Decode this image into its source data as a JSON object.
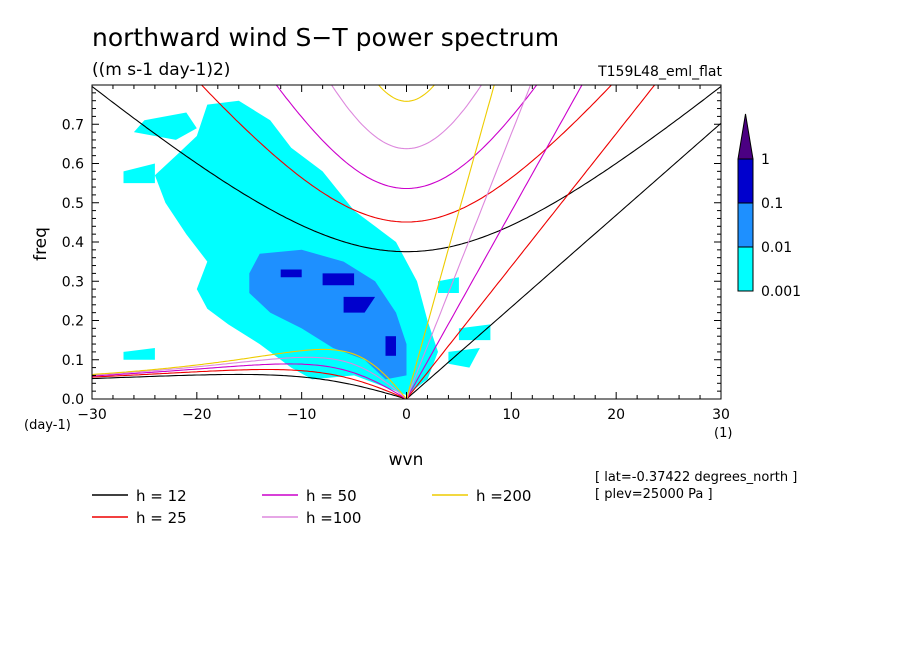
{
  "chart_data": {
    "type": "heatmap",
    "title": "northward wind S−T power spectrum",
    "subtitle": "((m s-1 day-1)2)",
    "run_label": "T159L48_eml_flat",
    "xlabel": "wvn",
    "ylabel": "freq",
    "x_unit": "(1)",
    "y_unit": "(day-1)",
    "xlim": [
      -30,
      30
    ],
    "ylim": [
      0,
      0.8
    ],
    "x_ticks": [
      -30,
      -20,
      -10,
      0,
      10,
      20,
      30
    ],
    "x_tick_labels": [
      "−30",
      "−20",
      "−10",
      "0",
      "10",
      "20",
      "30"
    ],
    "y_ticks": [
      0,
      0.1,
      0.2,
      0.3,
      0.4,
      0.5,
      0.6,
      0.7
    ],
    "y_tick_labels": [
      "0.0",
      "0.1",
      "0.2",
      "0.3",
      "0.4",
      "0.5",
      "0.6",
      "0.7"
    ],
    "colorbar": {
      "levels": [
        0.001,
        0.01,
        0.1,
        1
      ],
      "level_labels": [
        "0.001",
        "0.01",
        "0.1",
        "1"
      ],
      "colors": [
        "#00ffff",
        "#1e90ff",
        "#0000cd",
        "#4b0082"
      ]
    },
    "power_regions": [
      {
        "level": 0,
        "polygon": [
          [
            -19,
            0.75
          ],
          [
            -16,
            0.76
          ],
          [
            -13,
            0.71
          ],
          [
            -11,
            0.64
          ],
          [
            -8,
            0.58
          ],
          [
            -5,
            0.48
          ],
          [
            -3,
            0.44
          ],
          [
            -1,
            0.4
          ],
          [
            1,
            0.3
          ],
          [
            2,
            0.2
          ],
          [
            3,
            0.12
          ],
          [
            2,
            0.05
          ],
          [
            0,
            0.01
          ],
          [
            -2,
            0.03
          ],
          [
            -5,
            0.06
          ],
          [
            -9,
            0.05
          ],
          [
            -11,
            0.08
          ],
          [
            -14,
            0.14
          ],
          [
            -17,
            0.19
          ],
          [
            -19,
            0.23
          ],
          [
            -20,
            0.28
          ],
          [
            -19,
            0.35
          ],
          [
            -21,
            0.42
          ],
          [
            -23,
            0.5
          ],
          [
            -24,
            0.57
          ],
          [
            -22,
            0.62
          ],
          [
            -20,
            0.67
          ]
        ]
      },
      {
        "level": 0,
        "polygon": [
          [
            -25,
            0.71
          ],
          [
            -21,
            0.73
          ],
          [
            -20,
            0.69
          ],
          [
            -22,
            0.66
          ],
          [
            -26,
            0.68
          ]
        ]
      },
      {
        "level": 0,
        "polygon": [
          [
            -27,
            0.58
          ],
          [
            -24,
            0.6
          ],
          [
            -24,
            0.55
          ],
          [
            -27,
            0.55
          ]
        ]
      },
      {
        "level": 0,
        "polygon": [
          [
            -16,
            0.63
          ],
          [
            -14,
            0.65
          ],
          [
            -15,
            0.6
          ],
          [
            -17,
            0.6
          ]
        ]
      },
      {
        "level": 0,
        "polygon": [
          [
            3,
            0.3
          ],
          [
            5,
            0.31
          ],
          [
            5,
            0.27
          ],
          [
            3,
            0.27
          ]
        ]
      },
      {
        "level": 0,
        "polygon": [
          [
            5,
            0.18
          ],
          [
            8,
            0.19
          ],
          [
            8,
            0.15
          ],
          [
            5,
            0.15
          ]
        ]
      },
      {
        "level": 0,
        "polygon": [
          [
            4,
            0.12
          ],
          [
            7,
            0.13
          ],
          [
            6,
            0.08
          ],
          [
            4,
            0.09
          ]
        ]
      },
      {
        "level": 0,
        "polygon": [
          [
            -27,
            0.12
          ],
          [
            -24,
            0.13
          ],
          [
            -24,
            0.1
          ],
          [
            -27,
            0.1
          ]
        ]
      },
      {
        "level": 1,
        "polygon": [
          [
            -14,
            0.37
          ],
          [
            -10,
            0.38
          ],
          [
            -6,
            0.35
          ],
          [
            -3,
            0.3
          ],
          [
            -1,
            0.22
          ],
          [
            0,
            0.14
          ],
          [
            0,
            0.06
          ],
          [
            -2,
            0.05
          ],
          [
            -4,
            0.1
          ],
          [
            -7,
            0.13
          ],
          [
            -10,
            0.18
          ],
          [
            -13,
            0.22
          ],
          [
            -15,
            0.27
          ],
          [
            -15,
            0.32
          ]
        ]
      },
      {
        "level": 2,
        "polygon": [
          [
            -12,
            0.33
          ],
          [
            -10,
            0.33
          ],
          [
            -10,
            0.31
          ],
          [
            -12,
            0.31
          ]
        ]
      },
      {
        "level": 2,
        "polygon": [
          [
            -8,
            0.32
          ],
          [
            -5,
            0.32
          ],
          [
            -5,
            0.29
          ],
          [
            -8,
            0.29
          ]
        ]
      },
      {
        "level": 2,
        "polygon": [
          [
            -6,
            0.26
          ],
          [
            -3,
            0.26
          ],
          [
            -4,
            0.22
          ],
          [
            -6,
            0.22
          ]
        ]
      },
      {
        "level": 2,
        "polygon": [
          [
            -2,
            0.16
          ],
          [
            -1,
            0.16
          ],
          [
            -1,
            0.11
          ],
          [
            -2,
            0.11
          ]
        ]
      }
    ],
    "dispersion_curves": [
      {
        "name": "h = 12",
        "color": "#000000"
      },
      {
        "name": "h = 25",
        "color": "#ee0000"
      },
      {
        "name": "h = 50",
        "color": "#cc00cc"
      },
      {
        "name": "h =100",
        "color": "#dd88dd"
      },
      {
        "name": "h =200",
        "color": "#eecc00"
      }
    ],
    "legend_position": "bottom-left",
    "info_lines": [
      "[ lat=-0.37422 degrees_north ]",
      "[ plev=25000 Pa ]"
    ]
  }
}
